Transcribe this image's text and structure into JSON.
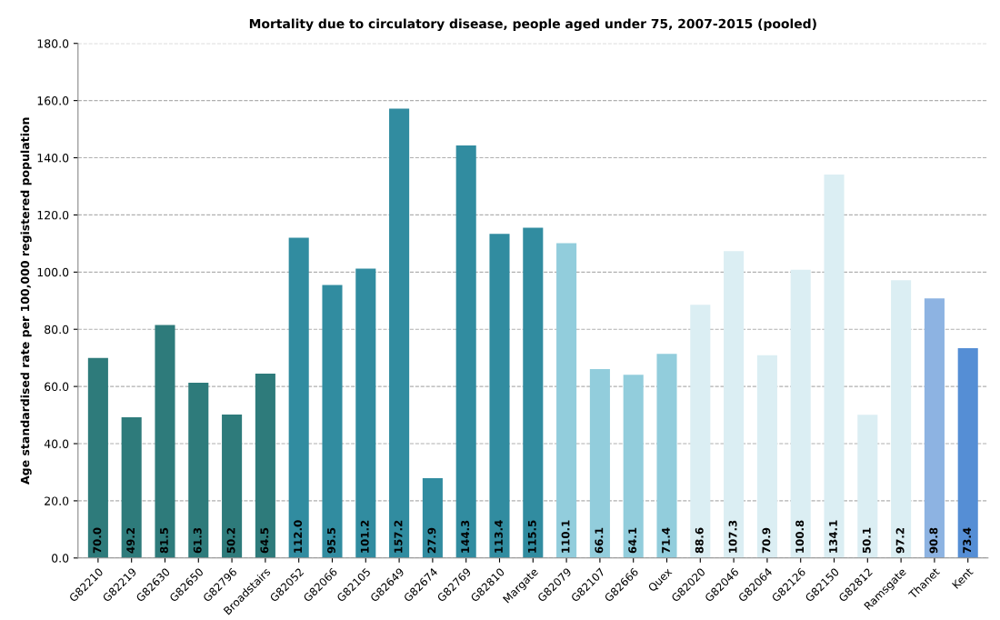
{
  "chart_data": {
    "type": "bar",
    "title": "Mortality due to circulatory disease, people aged under 75, 2007-2015 (pooled)",
    "ylabel": "Age standardised rate per 100,000 registered population",
    "categories": [
      "G82210",
      "G82219",
      "G82630",
      "G82650",
      "G82796",
      "Broadstairs",
      "G82052",
      "G82066",
      "G82105",
      "G82649",
      "G82674",
      "G82769",
      "G82810",
      "Margate",
      "G82079",
      "G82107",
      "G82666",
      "Quex",
      "G82020",
      "G82046",
      "G82064",
      "G82126",
      "G82150",
      "G82812",
      "Ramsgate",
      "Thanet",
      "Kent"
    ],
    "values": [
      70.0,
      49.2,
      81.5,
      61.3,
      50.2,
      64.5,
      112.0,
      95.5,
      101.2,
      157.2,
      27.9,
      144.3,
      113.4,
      115.5,
      110.1,
      66.1,
      64.1,
      71.4,
      88.6,
      107.3,
      70.9,
      100.8,
      134.1,
      50.1,
      97.2,
      90.8,
      73.4
    ],
    "colors": [
      "#2e7b7b",
      "#2e7b7b",
      "#2e7b7b",
      "#2e7b7b",
      "#2e7b7b",
      "#2e7b7b",
      "#318ca0",
      "#318ca0",
      "#318ca0",
      "#318ca0",
      "#318ca0",
      "#318ca0",
      "#318ca0",
      "#318ca0",
      "#92cddc",
      "#92cddc",
      "#92cddc",
      "#92cddc",
      "#dbeef3",
      "#dbeef3",
      "#dbeef3",
      "#dbeef3",
      "#dbeef3",
      "#dbeef3",
      "#dbeef3",
      "#8db3e2",
      "#558ed5"
    ],
    "value_labels": [
      "70.0",
      "49.2",
      "81.5",
      "61.3",
      "50.2",
      "64.5",
      "112.0",
      "95.5",
      "101.2",
      "157.2",
      "27.9",
      "144.3",
      "113.4",
      "115.5",
      "110.1",
      "66.1",
      "64.1",
      "71.4",
      "88.6",
      "107.3",
      "70.9",
      "100.8",
      "134.1",
      "50.1",
      "97.2",
      "90.8",
      "73.4"
    ],
    "ylim": [
      0,
      180
    ],
    "yticks": [
      {
        "value": 0,
        "label": "0.0"
      },
      {
        "value": 20,
        "label": "20.0"
      },
      {
        "value": 40,
        "label": "40.0"
      },
      {
        "value": 60,
        "label": "60.0"
      },
      {
        "value": 80,
        "label": "80.0"
      },
      {
        "value": 100,
        "label": "100.0"
      },
      {
        "value": 120,
        "label": "120.0"
      },
      {
        "value": 140,
        "label": "140.0"
      },
      {
        "value": 160,
        "label": "160.0"
      },
      {
        "value": 180,
        "label": "180.0"
      }
    ],
    "grid": "y"
  }
}
